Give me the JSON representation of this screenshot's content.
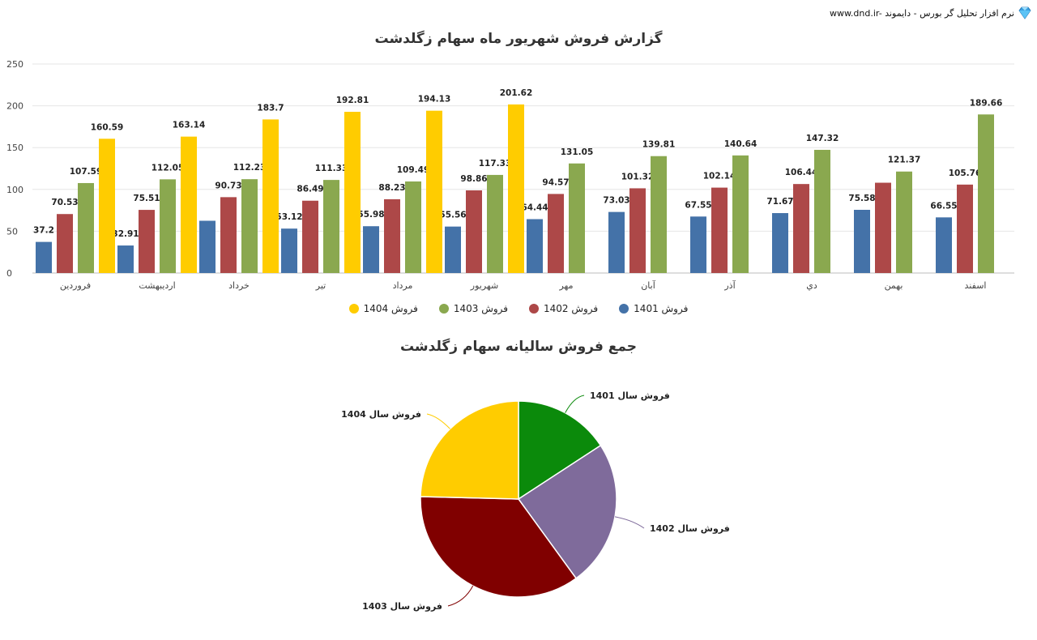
{
  "header": {
    "brand_text": "www.dnd.ir- نرم افزار تحلیل گر بورس - دایموند",
    "brand_icon": "diamond-icon"
  },
  "chart_data": [
    {
      "type": "bar",
      "title": "گزارش فروش شهریور ماه سهام زگلدشت",
      "xlabel": "",
      "ylabel": "",
      "ylim": [
        0,
        250
      ],
      "yticks": [
        0,
        50,
        100,
        150,
        200,
        250
      ],
      "grid": true,
      "legend_position": "bottom",
      "categories": [
        "فروردین",
        "اردیبهشت",
        "خرداد",
        "تیر",
        "مرداد",
        "شهریور",
        "مهر",
        "آبان",
        "آذر",
        "دي",
        "بهمن",
        "اسفند"
      ],
      "series": [
        {
          "name": "فروش 1401",
          "color": "#4472a8",
          "values": [
            37.2,
            32.91,
            62.49,
            53.12,
            55.98,
            55.56,
            64.44,
            73.03,
            67.55,
            71.67,
            75.58,
            66.55
          ],
          "labels": [
            "37.2",
            "32.91",
            "",
            "53.12",
            "55.98",
            "55.56",
            "64.44",
            "73.03",
            "67.55",
            "71.67",
            "75.58",
            "66.55"
          ]
        },
        {
          "name": "فروش 1402",
          "color": "#ad4848",
          "values": [
            70.53,
            75.51,
            90.73,
            86.49,
            88.23,
            98.86,
            94.57,
            101.32,
            102.14,
            106.44,
            108.0,
            105.76
          ],
          "labels": [
            "70.53",
            "75.51",
            "90.73",
            "86.49",
            "88.23",
            "98.86",
            "94.57",
            "101.32",
            "102.14",
            "106.44",
            "",
            "105.76"
          ]
        },
        {
          "name": "فروش 1403",
          "color": "#8aa84f",
          "values": [
            107.59,
            112.05,
            112.23,
            111.33,
            109.49,
            117.33,
            131.05,
            139.81,
            140.64,
            147.32,
            121.37,
            189.66
          ],
          "labels": [
            "107.59",
            "112.05",
            "112.23",
            "111.33",
            "109.49",
            "117.33",
            "131.05",
            "139.81",
            "140.64",
            "147.32",
            "121.37",
            "189.66"
          ]
        },
        {
          "name": "فروش 1404",
          "color": "#ffcc00",
          "values": [
            160.59,
            163.14,
            183.7,
            192.81,
            194.13,
            201.62,
            null,
            null,
            null,
            null,
            null,
            null
          ],
          "labels": [
            "160.59",
            "163.14",
            "183.7",
            "192.81",
            "194.13",
            "201.62",
            "",
            "",
            "",
            "",
            "",
            ""
          ]
        }
      ]
    },
    {
      "type": "pie",
      "title": "جمع فروش سالیانه سهام زگلدشت",
      "slices": [
        {
          "label": "فروش سال 1401",
          "color": "#0b8a0b",
          "value": 15.8
        },
        {
          "label": "فروش سال 1402",
          "color": "#7f6b9b",
          "value": 24.2
        },
        {
          "label": "فروش سال 1403",
          "color": "#800000",
          "value": 35.4
        },
        {
          "label": "فروش سال 1404",
          "color": "#ffcc00",
          "value": 24.6
        }
      ]
    }
  ]
}
